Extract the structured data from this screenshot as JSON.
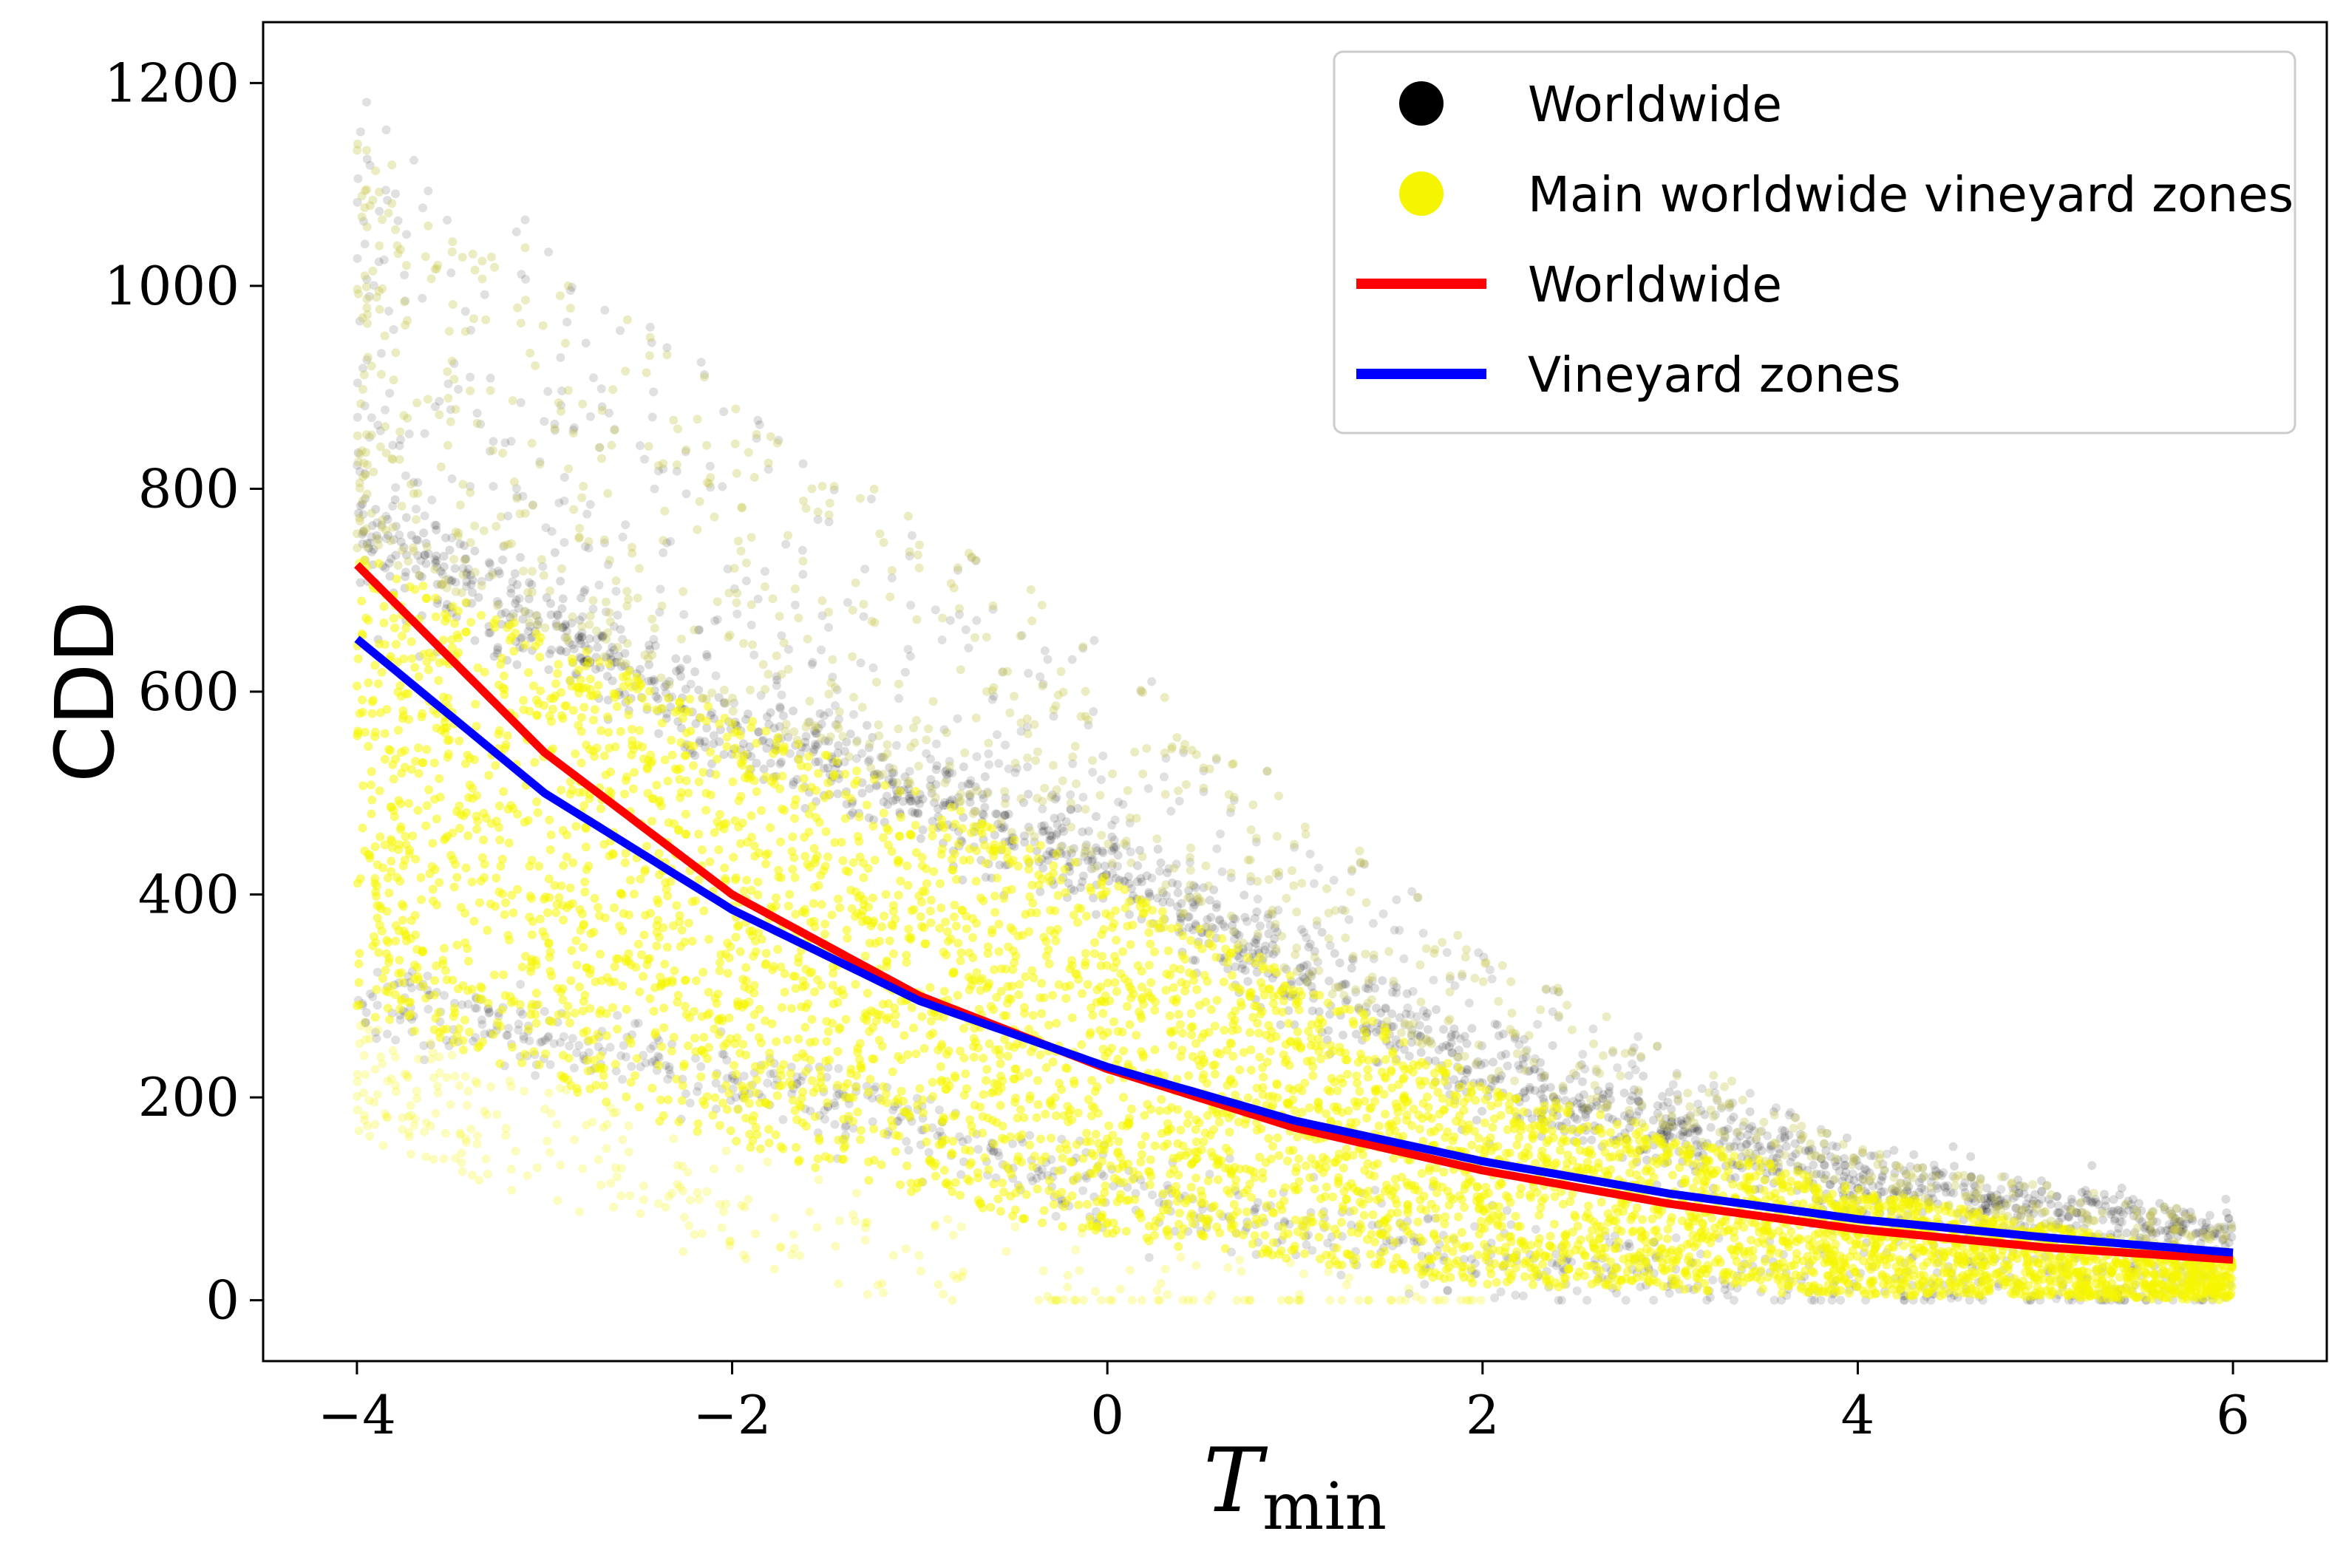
{
  "chart_data": {
    "type": "scatter",
    "xlabel": "T",
    "xlabel_subscript": "min",
    "ylabel": "CDD",
    "xlim": [
      -4.5,
      6.5
    ],
    "ylim": [
      -60,
      1260
    ],
    "x_ticks": [
      -4,
      -2,
      0,
      2,
      4,
      6
    ],
    "x_tick_labels": [
      "−4",
      "−2",
      "0",
      "2",
      "4",
      "6"
    ],
    "y_ticks": [
      0,
      200,
      400,
      600,
      800,
      1000,
      1200
    ],
    "y_tick_labels": [
      "0",
      "200",
      "400",
      "600",
      "800",
      "1000",
      "1200"
    ],
    "grid": false,
    "legend_position": "top-right",
    "scatter_series": [
      {
        "name": "Worldwide",
        "color": "#000000",
        "marker": "circle",
        "x_range": [
          -4,
          6
        ],
        "band_centers_x": [
          -4,
          -2,
          0,
          2,
          4,
          6
        ],
        "dense_upper_band_y": [
          760,
          560,
          420,
          220,
          110,
          60
        ],
        "dense_lower_band_y": [
          300,
          220,
          110,
          40,
          15,
          5
        ],
        "outlier_max_y": [
          1200,
          900,
          650,
          350,
          150,
          80
        ]
      },
      {
        "name": "Main worldwide vineyard zones",
        "color": "#f5f500",
        "marker": "circle",
        "x_range": [
          -4,
          6
        ],
        "band_centers_x": [
          -4,
          -2,
          0,
          2,
          4,
          6
        ],
        "band_top_y": [
          740,
          580,
          420,
          220,
          110,
          40
        ],
        "band_bottom_y": [
          280,
          150,
          60,
          15,
          5,
          0
        ],
        "outlier_max_y": [
          1150,
          900,
          650,
          350,
          150,
          80
        ]
      }
    ],
    "line_series": [
      {
        "name": "Worldwide",
        "color": "#ff0000",
        "x": [
          -4,
          -3,
          -2,
          -1,
          0,
          1,
          2,
          3,
          4,
          5,
          6
        ],
        "y": [
          725,
          540,
          400,
          300,
          228,
          170,
          128,
          95,
          70,
          52,
          40
        ]
      },
      {
        "name": "Vineyard zones",
        "color": "#0000ff",
        "x": [
          -4,
          -3,
          -2,
          -1,
          0,
          1,
          2,
          3,
          4,
          5,
          6
        ],
        "y": [
          652,
          500,
          385,
          295,
          230,
          177,
          137,
          105,
          80,
          62,
          47
        ]
      }
    ],
    "legend": [
      {
        "label": "Worldwide",
        "kind": "marker",
        "color": "#000000"
      },
      {
        "label": "Main worldwide vineyard zones",
        "kind": "marker",
        "color": "#f5f500"
      },
      {
        "label": "Worldwide",
        "kind": "line",
        "color": "#ff0000"
      },
      {
        "label": "Vineyard zones",
        "kind": "line",
        "color": "#0000ff"
      }
    ]
  }
}
